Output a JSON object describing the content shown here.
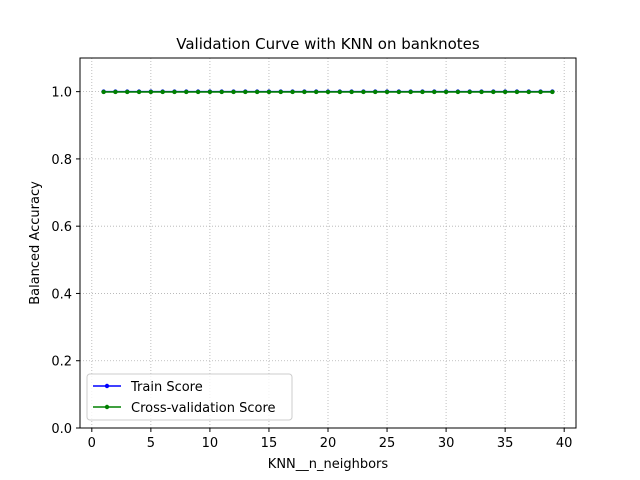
{
  "chart_data": {
    "type": "line",
    "title": "Validation Curve with KNN on banknotes",
    "xlabel": "KNN__n_neighbors",
    "ylabel": "Balanced Accuracy",
    "xlim": [
      -1,
      41
    ],
    "ylim": [
      0.0,
      1.1
    ],
    "xticks": [
      0,
      5,
      10,
      15,
      20,
      25,
      30,
      35,
      40
    ],
    "yticks": [
      0.0,
      0.2,
      0.4,
      0.6,
      0.8,
      1.0
    ],
    "ytick_labels": [
      "0.0",
      "0.2",
      "0.4",
      "0.6",
      "0.8",
      "1.0"
    ],
    "grid": true,
    "legend_position": "lower-left",
    "x": [
      1,
      2,
      3,
      4,
      5,
      6,
      7,
      8,
      9,
      10,
      11,
      12,
      13,
      14,
      15,
      16,
      17,
      18,
      19,
      20,
      21,
      22,
      23,
      24,
      25,
      26,
      27,
      28,
      29,
      30,
      31,
      32,
      33,
      34,
      35,
      36,
      37,
      38,
      39
    ],
    "series": [
      {
        "name": "Train Score",
        "color": "#0000ff",
        "values": [
          1.0,
          1.0,
          1.0,
          1.0,
          1.0,
          1.0,
          1.0,
          1.0,
          1.0,
          1.0,
          1.0,
          1.0,
          1.0,
          1.0,
          1.0,
          1.0,
          1.0,
          1.0,
          1.0,
          1.0,
          1.0,
          1.0,
          1.0,
          1.0,
          1.0,
          1.0,
          1.0,
          1.0,
          1.0,
          1.0,
          1.0,
          1.0,
          1.0,
          1.0,
          1.0,
          1.0,
          1.0,
          1.0,
          1.0
        ]
      },
      {
        "name": "Cross-validation Score",
        "color": "#008000",
        "values": [
          0.999,
          0.999,
          0.999,
          0.999,
          0.999,
          0.999,
          0.999,
          0.999,
          0.999,
          0.999,
          0.999,
          0.999,
          0.999,
          0.999,
          0.999,
          0.999,
          0.999,
          0.999,
          0.999,
          0.999,
          0.999,
          0.999,
          0.999,
          0.999,
          0.999,
          0.999,
          0.999,
          0.999,
          0.999,
          0.999,
          0.999,
          0.999,
          0.999,
          0.999,
          0.999,
          0.999,
          0.999,
          0.999,
          0.999
        ]
      }
    ]
  }
}
